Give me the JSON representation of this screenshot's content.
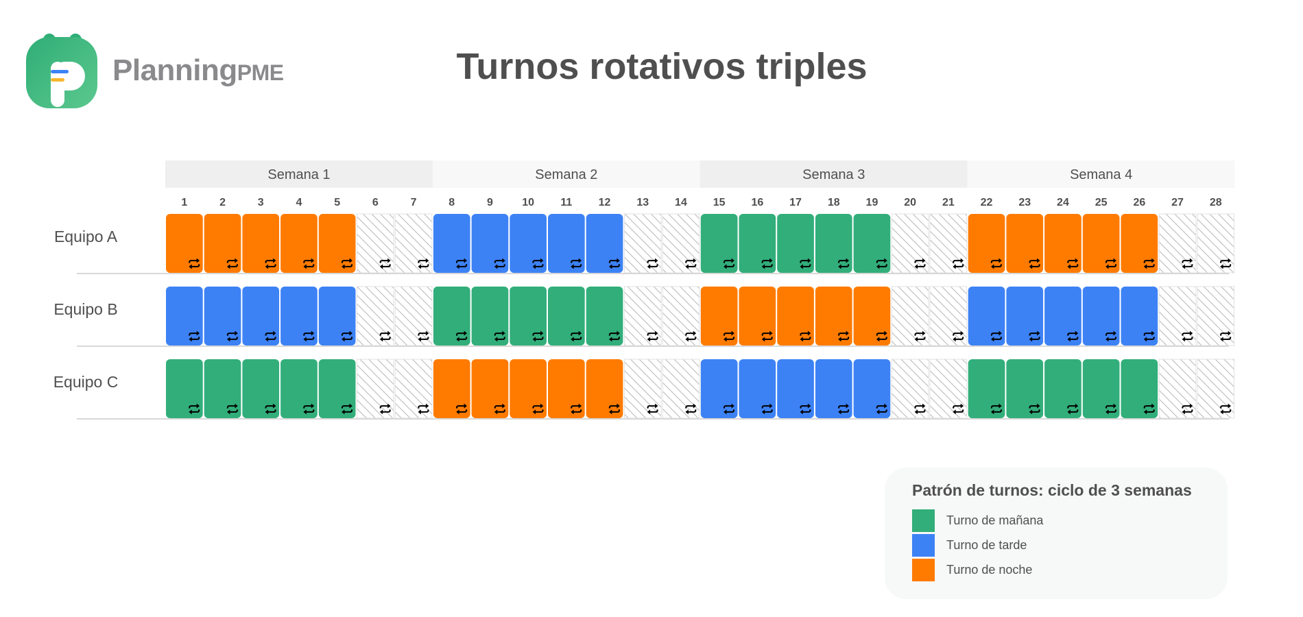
{
  "brand": {
    "name_main": "Planning",
    "name_suffix": "PME",
    "colors": {
      "green": "#3db37d",
      "blue": "#3b82f6",
      "yellow": "#f7b731",
      "text": "#8a8a8d"
    }
  },
  "chart_data": {
    "type": "table",
    "title": "Turnos rotativos triples",
    "weeks": [
      "Semana 1",
      "Semana 2",
      "Semana 3",
      "Semana 4"
    ],
    "days": [
      1,
      2,
      3,
      4,
      5,
      6,
      7,
      8,
      9,
      10,
      11,
      12,
      13,
      14,
      15,
      16,
      17,
      18,
      19,
      20,
      21,
      22,
      23,
      24,
      25,
      26,
      27,
      28
    ],
    "teams": [
      {
        "name": "Equipo A",
        "shifts": [
          "noche",
          "noche",
          "noche",
          "noche",
          "noche",
          "libre",
          "libre",
          "tarde",
          "tarde",
          "tarde",
          "tarde",
          "tarde",
          "libre",
          "libre",
          "manana",
          "manana",
          "manana",
          "manana",
          "manana",
          "libre",
          "libre",
          "noche",
          "noche",
          "noche",
          "noche",
          "noche",
          "libre",
          "libre"
        ]
      },
      {
        "name": "Equipo B",
        "shifts": [
          "tarde",
          "tarde",
          "tarde",
          "tarde",
          "tarde",
          "libre",
          "libre",
          "manana",
          "manana",
          "manana",
          "manana",
          "manana",
          "libre",
          "libre",
          "noche",
          "noche",
          "noche",
          "noche",
          "noche",
          "libre",
          "libre",
          "tarde",
          "tarde",
          "tarde",
          "tarde",
          "tarde",
          "libre",
          "libre"
        ]
      },
      {
        "name": "Equipo C",
        "shifts": [
          "manana",
          "manana",
          "manana",
          "manana",
          "manana",
          "libre",
          "libre",
          "noche",
          "noche",
          "noche",
          "noche",
          "noche",
          "libre",
          "libre",
          "tarde",
          "tarde",
          "tarde",
          "tarde",
          "tarde",
          "libre",
          "libre",
          "manana",
          "manana",
          "manana",
          "manana",
          "manana",
          "libre",
          "libre"
        ]
      }
    ],
    "shift_colors": {
      "manana": "#32ae7a",
      "tarde": "#3d82f5",
      "noche": "#ff7b00",
      "libre": "#ffffff"
    },
    "rotation_icon": "repeat-icon"
  },
  "legend": {
    "title": "Patrón de turnos: ciclo de 3 semanas",
    "items": [
      {
        "label": "Turno de mañana",
        "color": "#32ae7a"
      },
      {
        "label": "Turno de tarde",
        "color": "#3d82f5"
      },
      {
        "label": "Turno de noche",
        "color": "#ff7b00"
      }
    ]
  }
}
